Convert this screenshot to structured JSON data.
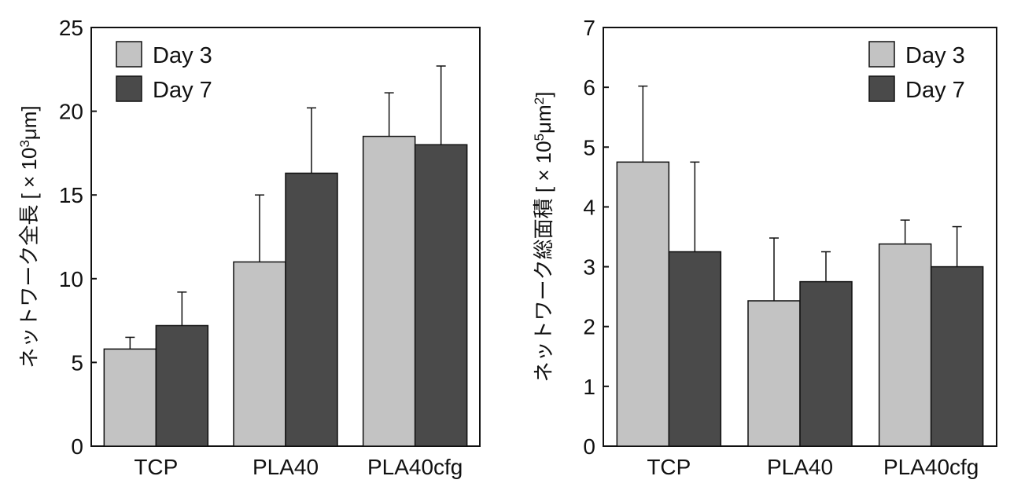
{
  "colors": {
    "day3": "#c3c3c3",
    "day7": "#4a4a4a",
    "axis": "#111111",
    "background": "#ffffff"
  },
  "chart_data": [
    {
      "type": "bar",
      "title": "",
      "xlabel": "",
      "ylabel": "ネットワーク全長 [ × 10³μm]",
      "ylabel_parts": {
        "main": "ネットワーク全長 [ × 10",
        "sup": "3",
        "tail": "μm]"
      },
      "ylim": [
        0,
        25
      ],
      "yticks": [
        0,
        5,
        10,
        15,
        20,
        25
      ],
      "categories": [
        "TCP",
        "PLA40",
        "PLA40cfg"
      ],
      "legend_position": "top-left",
      "grid": false,
      "series": [
        {
          "name": "Day 3",
          "values": [
            5.8,
            11.0,
            18.5
          ],
          "errors": [
            0.7,
            4.0,
            2.6
          ]
        },
        {
          "name": "Day 7",
          "values": [
            7.2,
            16.3,
            18.0
          ],
          "errors": [
            2.0,
            3.9,
            4.7
          ]
        }
      ]
    },
    {
      "type": "bar",
      "title": "",
      "xlabel": "",
      "ylabel": "ネットワーク総面積 [ × 10⁵μm²]",
      "ylabel_parts": {
        "main": "ネットワーク総面積 [ × 10",
        "sup": "5",
        "tail": "μm",
        "sup2": "2",
        "end": "]"
      },
      "ylim": [
        0,
        7
      ],
      "yticks": [
        0,
        1,
        2,
        3,
        4,
        5,
        6,
        7
      ],
      "categories": [
        "TCP",
        "PLA40",
        "PLA40cfg"
      ],
      "legend_position": "top-right",
      "grid": false,
      "series": [
        {
          "name": "Day 3",
          "values": [
            4.75,
            2.43,
            3.38
          ],
          "errors": [
            1.27,
            1.05,
            0.4
          ]
        },
        {
          "name": "Day 7",
          "values": [
            3.25,
            2.75,
            3.0
          ],
          "errors": [
            1.5,
            0.5,
            0.67
          ]
        }
      ]
    }
  ]
}
